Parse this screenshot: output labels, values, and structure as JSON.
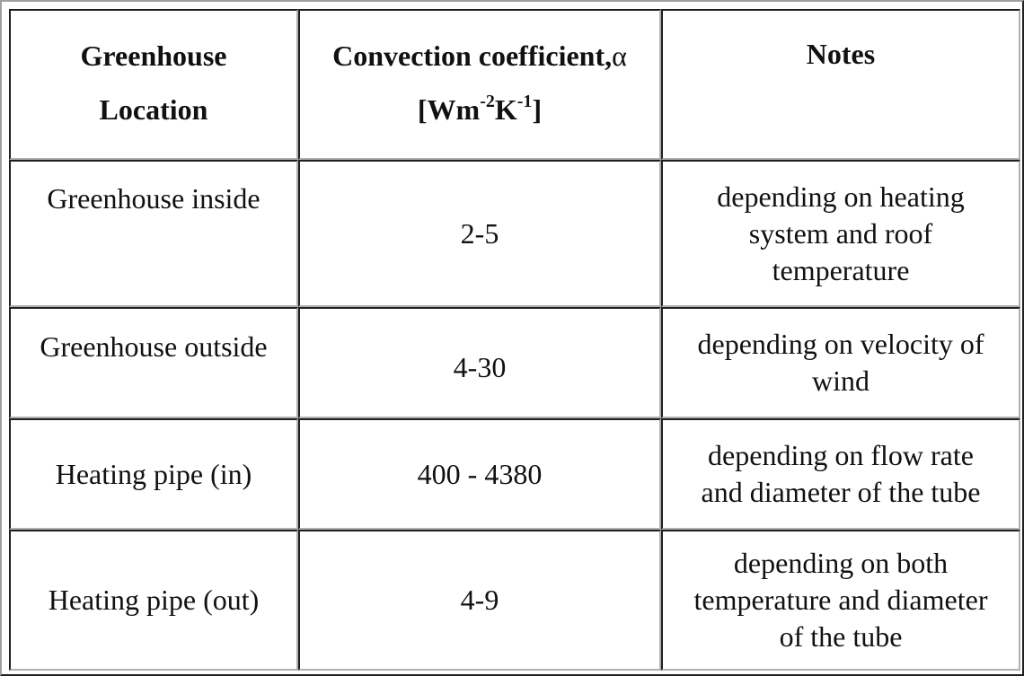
{
  "table": {
    "header": {
      "col1_line1": "Greenhouse",
      "col1_line2": "Location",
      "col2_main": "Convection coefficient,",
      "col2_alpha": "α",
      "col2_unit_open": "[Wm",
      "col2_unit_exp1": "-2",
      "col2_unit_k": "K",
      "col2_unit_exp2": "-1",
      "col2_unit_close": "]",
      "col3": "Notes"
    },
    "rows": [
      {
        "location": "Greenhouse inside",
        "value": "2-5",
        "note_lines": [
          "depending on heating",
          "system and roof",
          "temperature"
        ]
      },
      {
        "location": "Greenhouse outside",
        "value": "4-30",
        "note_lines": [
          "depending on velocity of",
          "wind"
        ]
      },
      {
        "location": "Heating pipe (in)",
        "value": "400 - 4380",
        "note_lines": [
          "depending on flow rate",
          "and diameter of the tube"
        ]
      },
      {
        "location": "Heating pipe (out)",
        "value": "4-9",
        "note_lines": [
          "depending on both",
          "temperature and diameter",
          "of the tube"
        ]
      }
    ]
  }
}
